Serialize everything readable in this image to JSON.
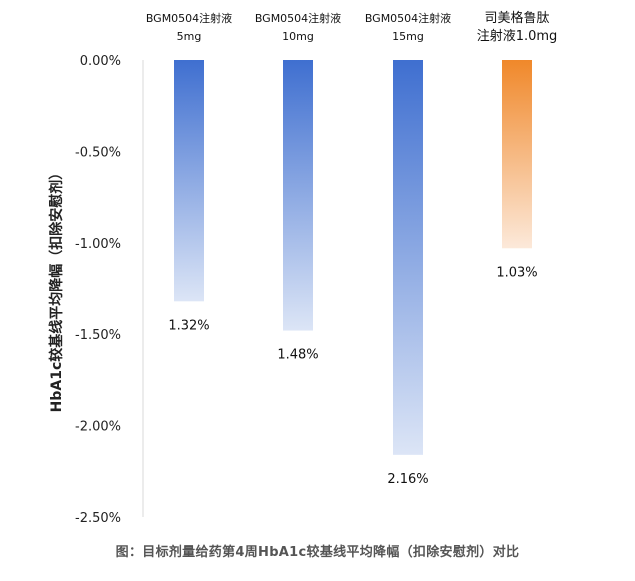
{
  "chart_data": {
    "type": "bar",
    "categories": [
      [
        "BGM0504注射液",
        "5mg"
      ],
      [
        "BGM0504注射液",
        "10mg"
      ],
      [
        "BGM0504注射液",
        "15mg"
      ],
      [
        "司美格鲁肽",
        "注射液1.0mg"
      ]
    ],
    "values": [
      -1.32,
      -1.48,
      -2.16,
      -1.03
    ],
    "data_labels": [
      "1.32%",
      "1.48%",
      "2.16%",
      "1.03%"
    ],
    "ylabel": "HbA1c较基线平均降幅（扣除安慰剂）",
    "ylim": [
      -2.5,
      0
    ],
    "yticks": [
      "0.00%",
      "-0.50%",
      "-1.00%",
      "-1.50%",
      "-2.00%",
      "-2.50%"
    ],
    "ytick_values": [
      0,
      -0.5,
      -1.0,
      -1.5,
      -2.0,
      -2.5
    ],
    "grid": false,
    "colors": {
      "blue_top": "#3F6FD0",
      "blue_bottom": "#DCE5F6",
      "orange_top": "#F0882A",
      "orange_bottom": "#FCE9DA",
      "axis": "#D9D9D9"
    }
  },
  "caption": "图：目标剂量给药第4周HbA1c较基线平均降幅（扣除安慰剂）对比"
}
